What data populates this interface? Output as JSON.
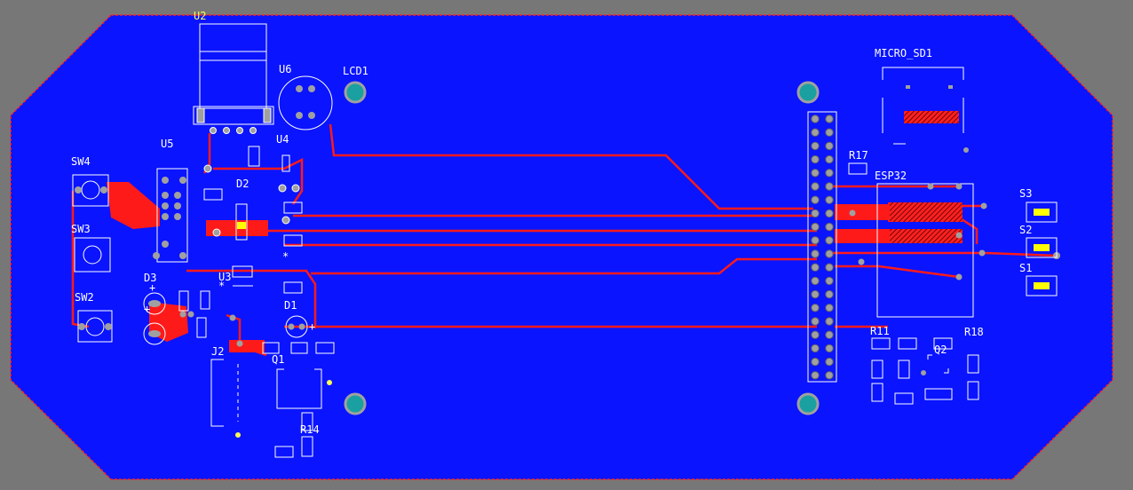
{
  "colors": {
    "background": "#777777",
    "copper_pour": "#0a14ff",
    "trace": "#ff1a1a",
    "silkscreen": "#ffffff",
    "label": "#ffff55",
    "pad_plated": "#a0a0a0",
    "mount_hole": "#1aa0a0",
    "board_edge": "#ff2020"
  },
  "labels": {
    "u2": "U2",
    "u6": "U6",
    "lcd1": "LCD1",
    "micro_sd1": "MICRO_SD1",
    "u5": "U5",
    "u4": "U4",
    "sw4": "SW4",
    "d2": "D2",
    "r17": "R17",
    "esp32": "ESP32",
    "s3": "S3",
    "s2": "S2",
    "sw3": "SW3",
    "s1": "S1",
    "d3": "D3",
    "u3": "U3",
    "sw2": "SW2",
    "d1": "D1",
    "r11": "R11",
    "r18": "R18",
    "j2": "J2",
    "q2": "Q2",
    "q1": "Q1",
    "r14": "R14"
  }
}
